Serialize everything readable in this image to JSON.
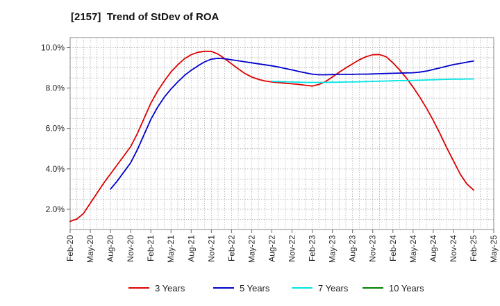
{
  "chart_data": {
    "type": "line",
    "title": "[2157]  Trend of StDev of ROA",
    "xlabel": "",
    "ylabel": "",
    "x_range": [
      "2020-02",
      "2025-05"
    ],
    "ylim": [
      1.0,
      10.5
    ],
    "y_ticks": [
      2.0,
      4.0,
      6.0,
      8.0,
      10.0
    ],
    "y_tick_labels": [
      "2.0%",
      "4.0%",
      "6.0%",
      "8.0%",
      "10.0%"
    ],
    "x_ticks": [
      "2020-02",
      "2020-05",
      "2020-08",
      "2020-11",
      "2021-02",
      "2021-05",
      "2021-08",
      "2021-11",
      "2022-02",
      "2022-05",
      "2022-08",
      "2022-11",
      "2023-02",
      "2023-05",
      "2023-08",
      "2023-11",
      "2024-02",
      "2024-05",
      "2024-08",
      "2024-11",
      "2025-02",
      "2025-05"
    ],
    "x_tick_labels": [
      "Feb-20",
      "May-20",
      "Aug-20",
      "Nov-20",
      "Feb-21",
      "May-21",
      "Aug-21",
      "Nov-21",
      "Feb-22",
      "May-22",
      "Aug-22",
      "Nov-22",
      "Feb-23",
      "May-23",
      "Aug-23",
      "Nov-23",
      "Feb-24",
      "May-24",
      "Aug-24",
      "Nov-24",
      "Feb-25",
      "May-25"
    ],
    "grid": true,
    "legend_position": "bottom",
    "series": [
      {
        "name": "3 Years",
        "color": "#dd0000",
        "points": [
          [
            "2020-02",
            1.4
          ],
          [
            "2020-03",
            1.52
          ],
          [
            "2020-04",
            1.8
          ],
          [
            "2020-05",
            2.3
          ],
          [
            "2020-06",
            2.8
          ],
          [
            "2020-07",
            3.3
          ],
          [
            "2020-08",
            3.75
          ],
          [
            "2020-09",
            4.2
          ],
          [
            "2020-10",
            4.65
          ],
          [
            "2020-11",
            5.1
          ],
          [
            "2020-12",
            5.75
          ],
          [
            "2021-01",
            6.5
          ],
          [
            "2021-02",
            7.25
          ],
          [
            "2021-03",
            7.85
          ],
          [
            "2021-04",
            8.35
          ],
          [
            "2021-05",
            8.8
          ],
          [
            "2021-06",
            9.15
          ],
          [
            "2021-07",
            9.45
          ],
          [
            "2021-08",
            9.65
          ],
          [
            "2021-09",
            9.77
          ],
          [
            "2021-10",
            9.82
          ],
          [
            "2021-11",
            9.82
          ],
          [
            "2021-12",
            9.68
          ],
          [
            "2022-01",
            9.45
          ],
          [
            "2022-02",
            9.2
          ],
          [
            "2022-03",
            8.95
          ],
          [
            "2022-04",
            8.72
          ],
          [
            "2022-05",
            8.55
          ],
          [
            "2022-06",
            8.43
          ],
          [
            "2022-07",
            8.35
          ],
          [
            "2022-08",
            8.3
          ],
          [
            "2022-09",
            8.27
          ],
          [
            "2022-10",
            8.24
          ],
          [
            "2022-11",
            8.21
          ],
          [
            "2022-12",
            8.18
          ],
          [
            "2023-01",
            8.14
          ],
          [
            "2023-02",
            8.1
          ],
          [
            "2023-03",
            8.18
          ],
          [
            "2023-04",
            8.32
          ],
          [
            "2023-05",
            8.55
          ],
          [
            "2023-06",
            8.78
          ],
          [
            "2023-07",
            9.0
          ],
          [
            "2023-08",
            9.2
          ],
          [
            "2023-09",
            9.4
          ],
          [
            "2023-10",
            9.55
          ],
          [
            "2023-11",
            9.65
          ],
          [
            "2023-12",
            9.66
          ],
          [
            "2024-01",
            9.55
          ],
          [
            "2024-02",
            9.25
          ],
          [
            "2024-03",
            8.9
          ],
          [
            "2024-04",
            8.5
          ],
          [
            "2024-05",
            8.05
          ],
          [
            "2024-06",
            7.55
          ],
          [
            "2024-07",
            7.0
          ],
          [
            "2024-08",
            6.4
          ],
          [
            "2024-09",
            5.75
          ],
          [
            "2024-10",
            5.05
          ],
          [
            "2024-11",
            4.4
          ],
          [
            "2024-12",
            3.75
          ],
          [
            "2025-01",
            3.25
          ],
          [
            "2025-02",
            2.95
          ]
        ]
      },
      {
        "name": "5 Years",
        "color": "#0000cc",
        "points": [
          [
            "2020-08",
            3.0
          ],
          [
            "2020-09",
            3.4
          ],
          [
            "2020-10",
            3.85
          ],
          [
            "2020-11",
            4.3
          ],
          [
            "2020-12",
            4.95
          ],
          [
            "2021-01",
            5.7
          ],
          [
            "2021-02",
            6.45
          ],
          [
            "2021-03",
            7.05
          ],
          [
            "2021-04",
            7.55
          ],
          [
            "2021-05",
            7.95
          ],
          [
            "2021-06",
            8.3
          ],
          [
            "2021-07",
            8.62
          ],
          [
            "2021-08",
            8.88
          ],
          [
            "2021-09",
            9.1
          ],
          [
            "2021-10",
            9.3
          ],
          [
            "2021-11",
            9.43
          ],
          [
            "2021-12",
            9.47
          ],
          [
            "2022-01",
            9.45
          ],
          [
            "2022-02",
            9.4
          ],
          [
            "2022-03",
            9.35
          ],
          [
            "2022-04",
            9.3
          ],
          [
            "2022-05",
            9.25
          ],
          [
            "2022-06",
            9.2
          ],
          [
            "2022-07",
            9.15
          ],
          [
            "2022-08",
            9.1
          ],
          [
            "2022-09",
            9.04
          ],
          [
            "2022-10",
            8.97
          ],
          [
            "2022-11",
            8.9
          ],
          [
            "2022-12",
            8.82
          ],
          [
            "2023-01",
            8.75
          ],
          [
            "2023-02",
            8.69
          ],
          [
            "2023-03",
            8.66
          ],
          [
            "2023-04",
            8.66
          ],
          [
            "2023-05",
            8.67
          ],
          [
            "2023-06",
            8.68
          ],
          [
            "2023-07",
            8.68
          ],
          [
            "2023-08",
            8.68
          ],
          [
            "2023-09",
            8.69
          ],
          [
            "2023-10",
            8.69
          ],
          [
            "2023-11",
            8.7
          ],
          [
            "2023-12",
            8.71
          ],
          [
            "2024-01",
            8.72
          ],
          [
            "2024-02",
            8.73
          ],
          [
            "2024-03",
            8.74
          ],
          [
            "2024-04",
            8.75
          ],
          [
            "2024-05",
            8.76
          ],
          [
            "2024-06",
            8.79
          ],
          [
            "2024-07",
            8.84
          ],
          [
            "2024-08",
            8.92
          ],
          [
            "2024-09",
            9.0
          ],
          [
            "2024-10",
            9.08
          ],
          [
            "2024-11",
            9.16
          ],
          [
            "2024-12",
            9.22
          ],
          [
            "2025-01",
            9.28
          ],
          [
            "2025-02",
            9.34
          ]
        ]
      },
      {
        "name": "7 Years",
        "color": "#00e5e5",
        "points": [
          [
            "2022-08",
            8.33
          ],
          [
            "2022-09",
            8.32
          ],
          [
            "2022-10",
            8.31
          ],
          [
            "2022-11",
            8.3
          ],
          [
            "2022-12",
            8.29
          ],
          [
            "2023-01",
            8.28
          ],
          [
            "2023-02",
            8.28
          ],
          [
            "2023-03",
            8.28
          ],
          [
            "2023-04",
            8.28
          ],
          [
            "2023-05",
            8.29
          ],
          [
            "2023-06",
            8.29
          ],
          [
            "2023-07",
            8.3
          ],
          [
            "2023-08",
            8.3
          ],
          [
            "2023-09",
            8.31
          ],
          [
            "2023-10",
            8.32
          ],
          [
            "2023-11",
            8.33
          ],
          [
            "2023-12",
            8.34
          ],
          [
            "2024-01",
            8.35
          ],
          [
            "2024-02",
            8.36
          ],
          [
            "2024-03",
            8.37
          ],
          [
            "2024-04",
            8.37
          ],
          [
            "2024-05",
            8.38
          ],
          [
            "2024-06",
            8.39
          ],
          [
            "2024-07",
            8.4
          ],
          [
            "2024-08",
            8.41
          ],
          [
            "2024-09",
            8.42
          ],
          [
            "2024-10",
            8.43
          ],
          [
            "2024-11",
            8.44
          ],
          [
            "2024-12",
            8.44
          ],
          [
            "2025-01",
            8.45
          ],
          [
            "2025-02",
            8.45
          ]
        ]
      },
      {
        "name": "10 Years",
        "color": "#008000",
        "points": []
      }
    ]
  }
}
